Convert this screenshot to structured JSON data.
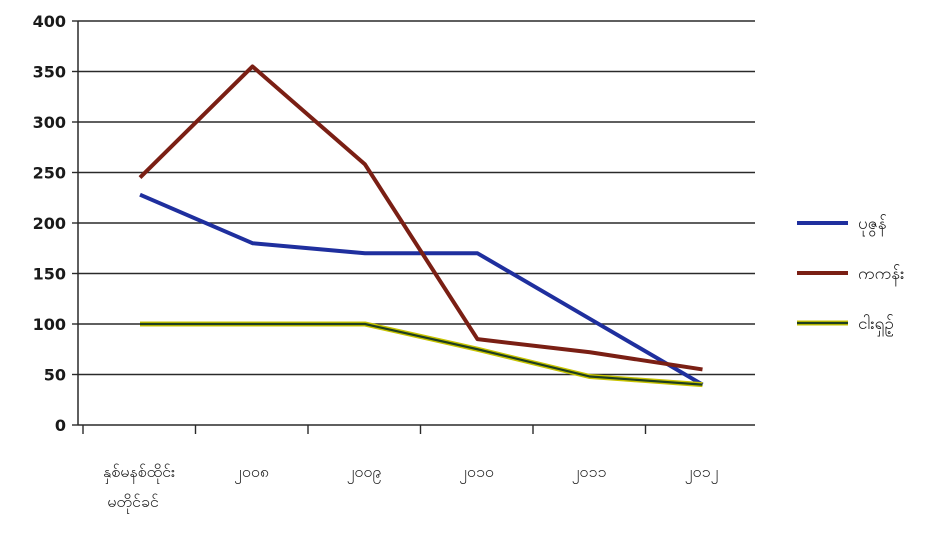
{
  "chart_data": {
    "type": "line",
    "title": "",
    "xlabel": "",
    "ylabel": "",
    "ylim": [
      0,
      400
    ],
    "yticks": [
      0,
      50,
      100,
      150,
      200,
      250,
      300,
      350,
      400
    ],
    "grid": true,
    "legend_position": "right",
    "tick_labels": [
      "နှစ်မနစ်ထိုင်း\nမတိုင်ခင်",
      "၂၀၀၈",
      "၂၀၀၉",
      "၂၀၁၀",
      "၂၀၁၁",
      "၂၀၁၂"
    ],
    "categories": [
      "နှစ်မနစ်ထိုင်း မတိုင်ခင်",
      "",
      "",
      "",
      "",
      ""
    ],
    "series": [
      {
        "name": "ပုဇွန်",
        "color": "#1f2f9e",
        "values": [
          228,
          180,
          170,
          170,
          105,
          40
        ]
      },
      {
        "name": "ကကန်း",
        "color": "#7a1f14",
        "values": [
          245,
          355,
          258,
          85,
          72,
          55
        ]
      },
      {
        "name": "ငါးရှဉ့်",
        "color": "#1f3f1f",
        "highlight": "#c8c400",
        "values": [
          100,
          100,
          100,
          75,
          48,
          40
        ]
      }
    ]
  }
}
